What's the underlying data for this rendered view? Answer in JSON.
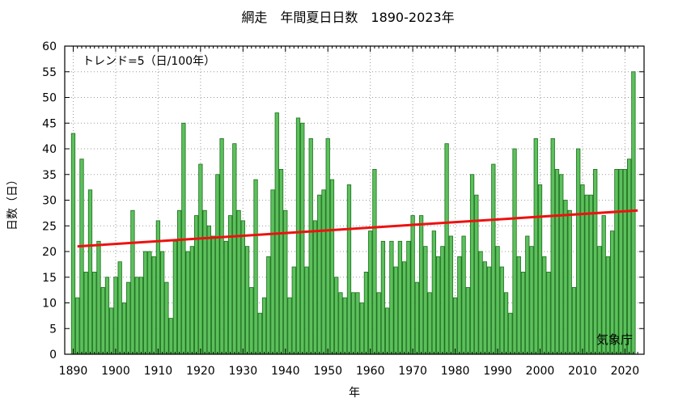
{
  "chart_data": {
    "type": "bar",
    "title": "網走　年間夏日日数　1890-2023年",
    "ylabel": "日数（日）",
    "xlabel": "年",
    "annotation": "トレンド=5（日/100年）",
    "source": "気象庁",
    "ylim": [
      0,
      60
    ],
    "xlim": [
      1888,
      2024.5
    ],
    "yticks": [
      0,
      5,
      10,
      15,
      20,
      25,
      30,
      35,
      40,
      45,
      50,
      55,
      60
    ],
    "xticks": [
      1890,
      1900,
      1910,
      1920,
      1930,
      1940,
      1950,
      1960,
      1970,
      1980,
      1990,
      2000,
      2010,
      2020
    ],
    "grid": true,
    "colors": {
      "bar_fill": "#5cc05c",
      "bar_stroke": "#1a6e1a",
      "trend": "#ee1111",
      "grid": "#999999"
    },
    "start_year": 1890,
    "values": [
      43,
      11,
      38,
      16,
      32,
      16,
      22,
      13,
      15,
      9,
      15,
      18,
      10,
      14,
      28,
      15,
      15,
      20,
      20,
      19,
      26,
      20,
      14,
      7,
      22,
      28,
      45,
      20,
      21,
      27,
      37,
      28,
      25,
      23,
      35,
      42,
      22,
      27,
      41,
      28,
      26,
      21,
      13,
      34,
      8,
      11,
      19,
      32,
      47,
      36,
      28,
      11,
      17,
      46,
      45,
      17,
      42,
      26,
      31,
      32,
      42,
      34,
      15,
      12,
      11,
      33,
      12,
      12,
      10,
      16,
      24,
      36,
      12,
      22,
      9,
      22,
      17,
      22,
      18,
      22,
      27,
      14,
      27,
      21,
      12,
      24,
      19,
      21,
      41,
      23,
      11,
      19,
      23,
      13,
      35,
      31,
      20,
      18,
      17,
      37,
      21,
      17,
      12,
      8,
      40,
      19,
      16,
      23,
      21,
      42,
      33,
      19,
      16,
      42,
      36,
      35,
      30,
      28,
      13,
      40,
      33,
      31,
      31,
      36,
      21,
      27,
      19,
      24,
      36,
      36,
      36,
      38,
      55,
      0
    ],
    "trend": {
      "x": [
        1891,
        2023
      ],
      "y": [
        21.0,
        28.0
      ]
    }
  }
}
